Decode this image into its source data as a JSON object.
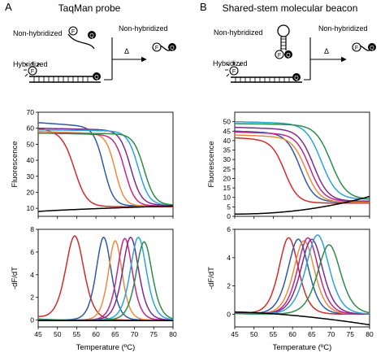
{
  "panels": [
    {
      "letter": "A",
      "title": "TaqMan probe",
      "diagram": {
        "label_non_hybridized_left": "Non-hybridized",
        "label_non_hybridized_right": "Non-hybridized",
        "label_hybridized": "Hybridized",
        "delta": "Δ",
        "fluorophore": "F",
        "quencher": "Q"
      }
    },
    {
      "letter": "B",
      "title": "Shared-stem molecular beacon",
      "diagram": {
        "label_non_hybridized_left": "Non-hybridized",
        "label_non_hybridized_right": "Non-hybridized",
        "label_hybridized": "Hybridized",
        "delta": "Δ",
        "fluorophore": "F",
        "quencher": "Q"
      }
    }
  ],
  "colors": {
    "red": "#d62a2a",
    "blue": "#2f5aa6",
    "orange": "#ee8a3c",
    "purple": "#7b2d8e",
    "magenta": "#c2268a",
    "cyan": "#2aa5d6",
    "green": "#2e8b4a",
    "black": "#000000"
  },
  "chart_data": [
    {
      "id": "A-fluorescence",
      "type": "line",
      "ylabel": "Fluorescence",
      "xlim": [
        45,
        80
      ],
      "ylim": [
        5,
        70
      ],
      "xticks": [
        45,
        50,
        55,
        60,
        65,
        70,
        75,
        80
      ],
      "yticks": [
        10,
        20,
        30,
        40,
        50,
        60,
        70
      ],
      "show_xtick_labels": false,
      "series": [
        {
          "color": "red",
          "shape": "melt",
          "high": 60,
          "low": 11,
          "tm": 54.5,
          "width": 1.6,
          "drift": -0.35
        },
        {
          "color": "blue",
          "shape": "melt",
          "high": 63.5,
          "low": 11.5,
          "tm": 62,
          "width": 1.3,
          "drift": -0.17
        },
        {
          "color": "orange",
          "shape": "melt",
          "high": 58,
          "low": 11.5,
          "tm": 65,
          "width": 1.2,
          "drift": -0.08
        },
        {
          "color": "magenta",
          "shape": "melt",
          "high": 57,
          "low": 11.5,
          "tm": 67.5,
          "width": 1.3,
          "drift": -0.05
        },
        {
          "color": "purple",
          "shape": "melt",
          "high": 60,
          "low": 12,
          "tm": 69,
          "width": 1.4,
          "drift": -0.05
        },
        {
          "color": "cyan",
          "shape": "melt",
          "high": 59,
          "low": 12,
          "tm": 71,
          "width": 1.4,
          "drift": -0.03
        },
        {
          "color": "green",
          "shape": "melt",
          "high": 57,
          "low": 12,
          "tm": 72.5,
          "width": 1.4,
          "drift": -0.02
        },
        {
          "color": "black",
          "shape": "baseline",
          "start": 8,
          "end": 11.5
        }
      ]
    },
    {
      "id": "A-derivative",
      "type": "line",
      "ylabel": "-dF/dT",
      "xlabel": "Temperature (ºC)",
      "xlim": [
        45,
        80
      ],
      "ylim": [
        -0.6,
        8
      ],
      "xticks": [
        45,
        50,
        55,
        60,
        65,
        70,
        75,
        80
      ],
      "yticks": [
        0,
        2,
        4,
        6,
        8
      ],
      "show_xtick_labels": true,
      "series": [
        {
          "color": "red",
          "shape": "peak",
          "peak": 7.4,
          "tm": 54.5,
          "width": 1.6,
          "tail": 0.25
        },
        {
          "color": "blue",
          "shape": "peak",
          "peak": 7.3,
          "tm": 62,
          "width": 1.3,
          "tail": 0.1
        },
        {
          "color": "orange",
          "shape": "peak",
          "peak": 7.0,
          "tm": 65,
          "width": 1.2,
          "tail": 0.05
        },
        {
          "color": "magenta",
          "shape": "peak",
          "peak": 7.2,
          "tm": 67.5,
          "width": 1.3,
          "tail": 0.05
        },
        {
          "color": "purple",
          "shape": "peak",
          "peak": 7.3,
          "tm": 69,
          "width": 1.4,
          "tail": 0.05
        },
        {
          "color": "cyan",
          "shape": "peak",
          "peak": 7.3,
          "tm": 71,
          "width": 1.4,
          "tail": 0.05
        },
        {
          "color": "green",
          "shape": "peak",
          "peak": 6.9,
          "tm": 72.5,
          "width": 1.4,
          "tail": 0.05
        },
        {
          "color": "black",
          "shape": "flat",
          "value": -0.05
        }
      ]
    },
    {
      "id": "B-fluorescence",
      "type": "line",
      "ylabel": "Fluorescence",
      "xlim": [
        45,
        80
      ],
      "ylim": [
        0,
        55
      ],
      "xticks": [
        45,
        50,
        55,
        60,
        65,
        70,
        75,
        80
      ],
      "yticks": [
        0,
        5,
        10,
        15,
        20,
        25,
        30,
        35,
        40,
        45,
        50
      ],
      "show_xtick_labels": false,
      "series": [
        {
          "color": "red",
          "shape": "melt",
          "high": 41.5,
          "low": 7,
          "tm": 58,
          "width": 1.7,
          "drift": -0.1
        },
        {
          "color": "blue",
          "shape": "melt",
          "high": 45,
          "low": 7.5,
          "tm": 62,
          "width": 1.8,
          "drift": -0.07
        },
        {
          "color": "orange",
          "shape": "melt",
          "high": 43,
          "low": 7.5,
          "tm": 63.5,
          "width": 1.8,
          "drift": -0.07
        },
        {
          "color": "magenta",
          "shape": "melt",
          "high": 44.5,
          "low": 8,
          "tm": 64.5,
          "width": 1.8,
          "drift": -0.06
        },
        {
          "color": "purple",
          "shape": "melt",
          "high": 47,
          "low": 8,
          "tm": 65.5,
          "width": 1.9,
          "drift": -0.06
        },
        {
          "color": "cyan",
          "shape": "melt",
          "high": 50,
          "low": 9,
          "tm": 67.5,
          "width": 2.0,
          "drift": -0.05
        },
        {
          "color": "green",
          "shape": "melt",
          "high": 49,
          "low": 9,
          "tm": 70,
          "width": 2.0,
          "drift": -0.03
        },
        {
          "color": "black",
          "shape": "rising",
          "start": 1.2,
          "end": 10.5
        }
      ]
    },
    {
      "id": "B-derivative",
      "type": "line",
      "ylabel": "-dF/dT",
      "xlabel": "Temperature (ºC)",
      "xlim": [
        45,
        80
      ],
      "ylim": [
        -0.9,
        6
      ],
      "xticks": [
        45,
        50,
        55,
        60,
        65,
        70,
        75,
        80
      ],
      "yticks": [
        0,
        2,
        4,
        6
      ],
      "show_xtick_labels": true,
      "series": [
        {
          "color": "red",
          "shape": "peak",
          "peak": 5.4,
          "tm": 59,
          "width": 1.7,
          "tail": 0.15
        },
        {
          "color": "blue",
          "shape": "peak",
          "peak": 5.3,
          "tm": 61.5,
          "width": 1.8,
          "tail": 0.1
        },
        {
          "color": "orange",
          "shape": "peak",
          "peak": 5.2,
          "tm": 63,
          "width": 1.8,
          "tail": 0.1
        },
        {
          "color": "magenta",
          "shape": "peak",
          "peak": 5.4,
          "tm": 64,
          "width": 1.8,
          "tail": 0.1
        },
        {
          "color": "purple",
          "shape": "peak",
          "peak": 5.3,
          "tm": 65,
          "width": 1.9,
          "tail": 0.1
        },
        {
          "color": "cyan",
          "shape": "peak",
          "peak": 5.6,
          "tm": 66.5,
          "width": 2.0,
          "tail": 0.05
        },
        {
          "color": "green",
          "shape": "peak",
          "peak": 4.9,
          "tm": 69.5,
          "width": 2.0,
          "tail": 0.05
        },
        {
          "color": "black",
          "shape": "declining",
          "start": 0.15,
          "end": -0.75
        }
      ]
    }
  ]
}
